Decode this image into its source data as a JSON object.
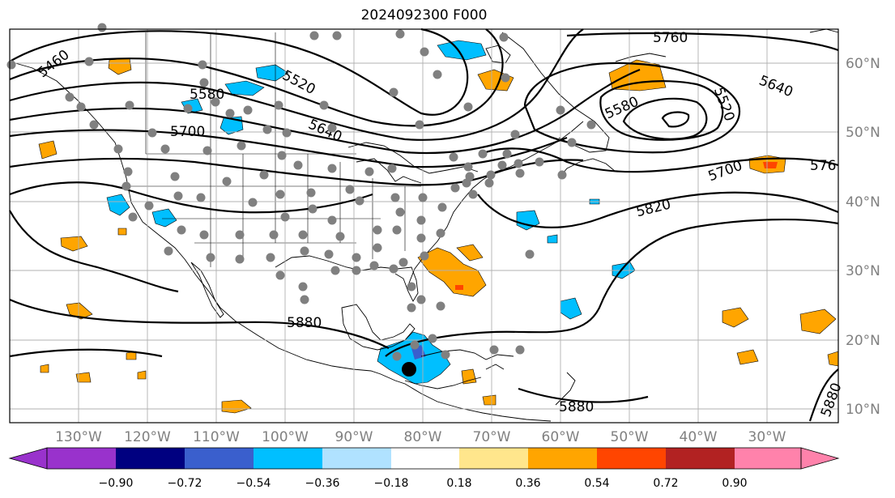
{
  "title": "2024092300 F000",
  "longitude_labels": [
    "130°W",
    "120°W",
    "110°W",
    "100°W",
    "90°W",
    "80°W",
    "70°W",
    "60°W",
    "50°W",
    "40°W",
    "30°W"
  ],
  "latitude_labels": [
    "60°N",
    "50°N",
    "40°N",
    "30°N",
    "20°N",
    "10°N"
  ],
  "contour_labels": [
    "5460",
    "5580",
    "5520",
    "5700",
    "5640",
    "5760",
    "5580",
    "5520",
    "5640",
    "5700",
    "576",
    "5820",
    "5880",
    "5880",
    "5880"
  ],
  "colorbar": {
    "colors": [
      "#9932cc",
      "#000080",
      "#3a5fcd",
      "#00bfff",
      "#b0e2ff",
      "#ffffff",
      "#ffffff",
      "#ffe68c",
      "#ffa500",
      "#ff4500",
      "#b22222",
      "#ff82ab"
    ],
    "tick_labels": [
      "−0.90",
      "−0.72",
      "−0.54",
      "−0.36",
      "−0.18",
      "0.18",
      "0.36",
      "0.54",
      "0.72",
      "0.90"
    ]
  },
  "colors": {
    "positive_anomaly": "#ffa500",
    "strong_positive": "#ff4500",
    "negative_anomaly": "#00bfff",
    "strong_negative": "#3a5fcd",
    "station_marker": "#808080",
    "storm_marker": "#000000",
    "grid": "#b0b0b0"
  },
  "markers": {
    "stations": "grey dots",
    "storm_center": "black dot"
  }
}
